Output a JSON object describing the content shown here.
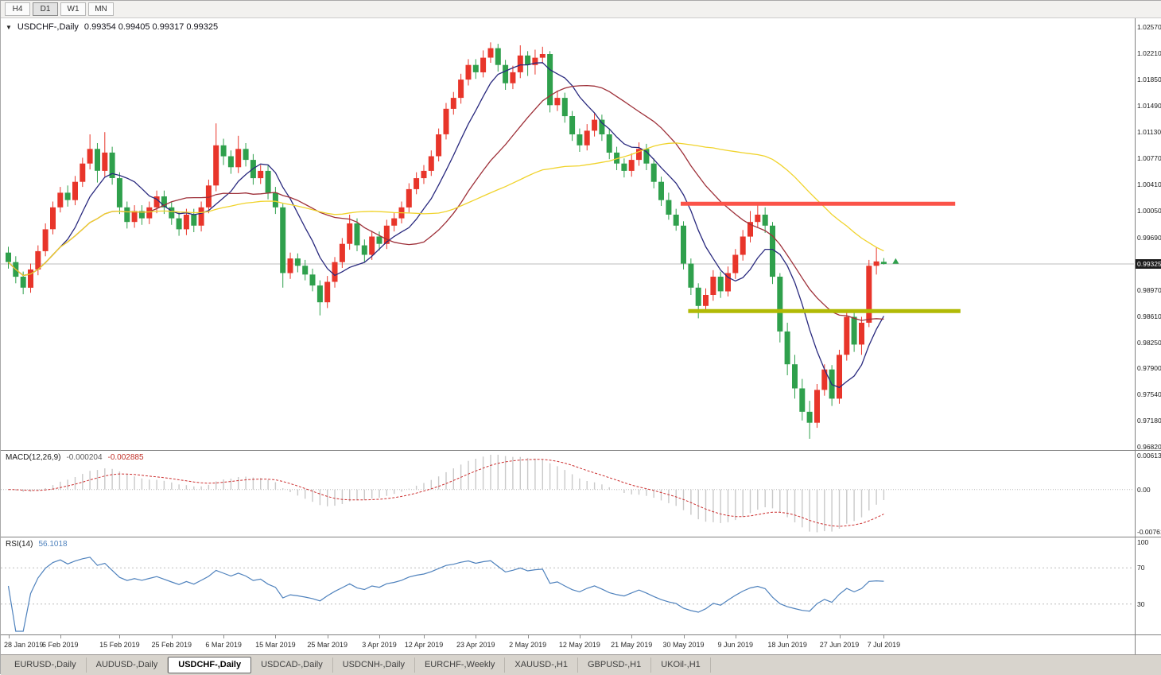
{
  "toolbar": {
    "timeframes": [
      "H4",
      "D1",
      "W1",
      "MN"
    ],
    "active": "D1"
  },
  "chart": {
    "symbol_label": "USDCHF-,Daily",
    "ohlc_readout": "0.99354 0.99405 0.99317 0.99325",
    "current_price": "0.99325",
    "price_axis_labels": [
      "1.02570",
      "1.02210",
      "1.01850",
      "1.01490",
      "1.01130",
      "1.00770",
      "1.00410",
      "1.00050",
      "0.99690",
      "0.98970",
      "0.98610",
      "0.98250",
      "0.97900",
      "0.97540",
      "0.97180",
      "0.96820"
    ]
  },
  "chart_data": {
    "type": "candlestick",
    "symbol": "USDCHF",
    "timeframe": "Daily",
    "axis_range": {
      "top": 1.0257,
      "bottom": 0.9682
    },
    "colors": {
      "up": "#e8352a",
      "down": "#2fa04c",
      "price_line": "#bdbdbd",
      "price_box_bg": "#1c1c1c",
      "price_box_text": "#ffffff"
    },
    "moving_averages": [
      {
        "name": "fast",
        "period": 8,
        "color": "#29297e"
      },
      {
        "name": "mid",
        "period": 20,
        "color": "#9e3039"
      },
      {
        "name": "slow",
        "period": 45,
        "color": "#f0d32c"
      }
    ],
    "levels": [
      {
        "name": "resistance",
        "price": 1.0015,
        "from_index": 91,
        "to_index": 128,
        "color": "#fb5349",
        "width": 5
      },
      {
        "name": "support",
        "price": 0.9868,
        "from_index": 92,
        "to_index": 128.7,
        "color": "#b1ba06",
        "width": 5
      }
    ],
    "markers": [
      {
        "index": 119.6,
        "price": 0.9936,
        "color": "#2fa04c"
      }
    ],
    "date_labels": [
      {
        "text": "28 Jan 2019",
        "index": 0
      },
      {
        "text": "6 Feb 2019",
        "index": 7
      },
      {
        "text": "15 Feb 2019",
        "index": 15
      },
      {
        "text": "25 Feb 2019",
        "index": 22
      },
      {
        "text": "6 Mar 2019",
        "index": 29
      },
      {
        "text": "15 Mar 2019",
        "index": 36
      },
      {
        "text": "25 Mar 2019",
        "index": 43
      },
      {
        "text": "3 Apr 2019",
        "index": 50
      },
      {
        "text": "12 Apr 2019",
        "index": 56
      },
      {
        "text": "23 Apr 2019",
        "index": 63
      },
      {
        "text": "2 May 2019",
        "index": 70
      },
      {
        "text": "12 May 2019",
        "index": 77
      },
      {
        "text": "21 May 2019",
        "index": 84
      },
      {
        "text": "30 May 2019",
        "index": 91
      },
      {
        "text": "9 Jun 2019",
        "index": 98
      },
      {
        "text": "18 Jun 2019",
        "index": 105
      },
      {
        "text": "27 Jun 2019",
        "index": 112
      },
      {
        "text": "7 Jul 2019",
        "index": 118
      }
    ],
    "candles": [
      [
        0.9948,
        0.9956,
        0.9926,
        0.9935
      ],
      [
        0.9935,
        0.9943,
        0.9906,
        0.9915
      ],
      [
        0.9915,
        0.9922,
        0.9891,
        0.99
      ],
      [
        0.99,
        0.9933,
        0.9893,
        0.9925
      ],
      [
        0.9925,
        0.9958,
        0.9917,
        0.995
      ],
      [
        0.995,
        0.9988,
        0.9943,
        0.998
      ],
      [
        0.998,
        1.0018,
        0.9973,
        1.001
      ],
      [
        1.001,
        1.0038,
        1.0003,
        1.003
      ],
      [
        1.003,
        1.004,
        1.0011,
        1.002
      ],
      [
        1.002,
        1.0053,
        1.0013,
        1.0045
      ],
      [
        1.0045,
        1.0078,
        1.0038,
        1.007
      ],
      [
        1.007,
        1.011,
        1.0062,
        1.009
      ],
      [
        1.009,
        1.0098,
        1.0044,
        1.006
      ],
      [
        1.006,
        1.0113,
        1.0052,
        1.0085
      ],
      [
        1.0085,
        1.0093,
        1.0041,
        1.005
      ],
      [
        1.005,
        1.0058,
        1.0001,
        1.001
      ],
      [
        1.001,
        1.0018,
        0.9981,
        0.999
      ],
      [
        0.999,
        1.0013,
        0.9982,
        1.0005
      ],
      [
        1.0005,
        1.0013,
        0.9986,
        0.9995
      ],
      [
        0.9995,
        1.0018,
        0.9987,
        1.001
      ],
      [
        1.001,
        1.0033,
        1.0002,
        1.0025
      ],
      [
        1.0025,
        1.0033,
        1.0001,
        1.001
      ],
      [
        1.001,
        1.0018,
        0.9986,
        0.9995
      ],
      [
        0.9995,
        1.0003,
        0.9971,
        0.998
      ],
      [
        0.998,
        1.0008,
        0.9972,
        1.0
      ],
      [
        1.0,
        1.0008,
        0.9976,
        0.9985
      ],
      [
        0.9985,
        1.0018,
        0.9977,
        1.001
      ],
      [
        1.001,
        1.0048,
        1.0002,
        1.004
      ],
      [
        1.004,
        1.0125,
        1.0032,
        1.0095
      ],
      [
        1.0095,
        1.0104,
        1.0068,
        1.008
      ],
      [
        1.008,
        1.0088,
        1.0056,
        1.0065
      ],
      [
        1.0065,
        1.0108,
        1.0057,
        1.009
      ],
      [
        1.009,
        1.0098,
        1.0066,
        1.0075
      ],
      [
        1.0075,
        1.0083,
        1.0041,
        1.005
      ],
      [
        1.005,
        1.0068,
        1.0042,
        1.006
      ],
      [
        1.006,
        1.0068,
        1.0021,
        1.003
      ],
      [
        1.003,
        1.0038,
        1.0001,
        1.001
      ],
      [
        1.001,
        1.0015,
        0.99,
        0.992
      ],
      [
        0.992,
        0.9948,
        0.9912,
        0.994
      ],
      [
        0.994,
        0.9947,
        0.9921,
        0.993
      ],
      [
        0.993,
        0.9938,
        0.991,
        0.9918
      ],
      [
        0.9918,
        0.9926,
        0.9895,
        0.9903
      ],
      [
        0.9903,
        0.991,
        0.9862,
        0.988
      ],
      [
        0.988,
        0.9916,
        0.9872,
        0.9908
      ],
      [
        0.9908,
        0.9942,
        0.99,
        0.9935
      ],
      [
        0.9935,
        0.9968,
        0.9927,
        0.996
      ],
      [
        0.996,
        1.0,
        0.9952,
        0.9988
      ],
      [
        0.9988,
        0.9995,
        0.995,
        0.9958
      ],
      [
        0.9958,
        0.9966,
        0.9935,
        0.9945
      ],
      [
        0.9945,
        0.9978,
        0.9938,
        0.997
      ],
      [
        0.997,
        0.9977,
        0.9951,
        0.996
      ],
      [
        0.996,
        0.9993,
        0.9953,
        0.9985
      ],
      [
        0.9985,
        1.0003,
        0.9977,
        0.9995
      ],
      [
        0.9995,
        1.0018,
        0.9988,
        1.001
      ],
      [
        1.001,
        1.0043,
        1.0003,
        1.0035
      ],
      [
        1.0035,
        1.0058,
        1.0028,
        1.005
      ],
      [
        1.005,
        1.0068,
        1.0042,
        1.006
      ],
      [
        1.006,
        1.0088,
        1.0053,
        1.008
      ],
      [
        1.008,
        1.0118,
        1.0073,
        1.011
      ],
      [
        1.011,
        1.0153,
        1.0103,
        1.0145
      ],
      [
        1.0145,
        1.0168,
        1.0137,
        1.016
      ],
      [
        1.016,
        1.0193,
        1.0152,
        1.0185
      ],
      [
        1.0185,
        1.0213,
        1.0177,
        1.0205
      ],
      [
        1.0205,
        1.0213,
        1.0186,
        1.0195
      ],
      [
        1.0195,
        1.0225,
        1.0188,
        1.0215
      ],
      [
        1.0215,
        1.0236,
        1.0208,
        1.0228
      ],
      [
        1.0228,
        1.0234,
        1.0196,
        1.0205
      ],
      [
        1.0205,
        1.0212,
        1.0171,
        1.018
      ],
      [
        1.018,
        1.0204,
        1.0172,
        1.0195
      ],
      [
        1.0195,
        1.0232,
        1.0187,
        1.0218
      ],
      [
        1.0218,
        1.0224,
        1.019,
        1.0205
      ],
      [
        1.0205,
        1.0226,
        1.0192,
        1.0215
      ],
      [
        1.0215,
        1.023,
        1.0207,
        1.022
      ],
      [
        1.022,
        1.0224,
        1.014,
        1.015
      ],
      [
        1.015,
        1.017,
        1.0142,
        1.016
      ],
      [
        1.016,
        1.0167,
        1.0126,
        1.0135
      ],
      [
        1.0135,
        1.0142,
        1.0101,
        1.011
      ],
      [
        1.011,
        1.0118,
        1.0086,
        1.0095
      ],
      [
        1.0095,
        1.0124,
        1.0088,
        1.0115
      ],
      [
        1.0115,
        1.0139,
        1.0107,
        1.013
      ],
      [
        1.013,
        1.0137,
        1.0101,
        1.011
      ],
      [
        1.011,
        1.0117,
        1.0076,
        1.0085
      ],
      [
        1.0085,
        1.0093,
        1.0061,
        1.007
      ],
      [
        1.007,
        1.0077,
        1.0051,
        1.006
      ],
      [
        1.006,
        1.0084,
        1.0052,
        1.0075
      ],
      [
        1.0075,
        1.0099,
        1.0067,
        1.009
      ],
      [
        1.009,
        1.0097,
        1.0061,
        1.007
      ],
      [
        1.007,
        1.0077,
        1.0036,
        1.0045
      ],
      [
        1.0045,
        1.0052,
        1.0012,
        1.002
      ],
      [
        1.002,
        1.003,
        0.9993,
        1.0
      ],
      [
        1.0,
        1.0008,
        0.9978,
        0.9985
      ],
      [
        0.9985,
        0.9991,
        0.9925,
        0.9933
      ],
      [
        0.9933,
        0.994,
        0.989,
        0.99
      ],
      [
        0.99,
        0.9906,
        0.9858,
        0.9875
      ],
      [
        0.9875,
        0.9899,
        0.9867,
        0.989
      ],
      [
        0.989,
        0.9924,
        0.9882,
        0.9915
      ],
      [
        0.9915,
        0.9922,
        0.9886,
        0.9895
      ],
      [
        0.9895,
        0.9929,
        0.9888,
        0.992
      ],
      [
        0.992,
        0.9953,
        0.9912,
        0.9945
      ],
      [
        0.9945,
        0.9979,
        0.9937,
        0.997
      ],
      [
        0.997,
        1.0005,
        0.9962,
        0.999
      ],
      [
        0.999,
        1.0013,
        0.9982,
        1.0
      ],
      [
        1.0,
        1.001,
        0.9975,
        0.9985
      ],
      [
        0.9985,
        0.999,
        0.9905,
        0.9915
      ],
      [
        0.9915,
        0.992,
        0.9825,
        0.984
      ],
      [
        0.984,
        0.9852,
        0.978,
        0.9795
      ],
      [
        0.9795,
        0.9808,
        0.9748,
        0.9762
      ],
      [
        0.9762,
        0.9775,
        0.9718,
        0.973
      ],
      [
        0.973,
        0.9745,
        0.9693,
        0.9715
      ],
      [
        0.9715,
        0.9768,
        0.9708,
        0.976
      ],
      [
        0.976,
        0.9795,
        0.9752,
        0.9788
      ],
      [
        0.9788,
        0.9794,
        0.9738,
        0.9748
      ],
      [
        0.9748,
        0.9815,
        0.9741,
        0.9808
      ],
      [
        0.9808,
        0.9868,
        0.98,
        0.986
      ],
      [
        0.986,
        0.9866,
        0.9812,
        0.9822
      ],
      [
        0.9822,
        0.986,
        0.9808,
        0.9852
      ],
      [
        0.9852,
        0.9938,
        0.9846,
        0.993
      ],
      [
        0.993,
        0.9955,
        0.9918,
        0.9936
      ],
      [
        0.99354,
        0.99405,
        0.99317,
        0.99325
      ]
    ]
  },
  "macd": {
    "label": "MACD(12,26,9)",
    "value_main": "-0.000204",
    "value_signal": "-0.002885",
    "fast": 12,
    "slow": 26,
    "signal": 9,
    "axis_labels": [
      "0.00613",
      "0.00",
      "-0.00761"
    ],
    "histogram_color": "#c9c9c9",
    "signal_color": "#cc2f2f"
  },
  "rsi": {
    "label": "RSI(14)",
    "value": "56.1018",
    "period": 14,
    "axis_labels": [
      "100",
      "70",
      "30"
    ],
    "levels": [
      70,
      30
    ],
    "line_color": "#4f82bd"
  },
  "tabs": {
    "items": [
      "EURUSD-,Daily",
      "AUDUSD-,Daily",
      "USDCHF-,Daily",
      "USDCAD-,Daily",
      "USDCNH-,Daily",
      "EURCHF-,Weekly",
      "XAUUSD-,H1",
      "GBPUSD-,H1",
      "UKOil-,H1"
    ],
    "active_index": 2
  }
}
